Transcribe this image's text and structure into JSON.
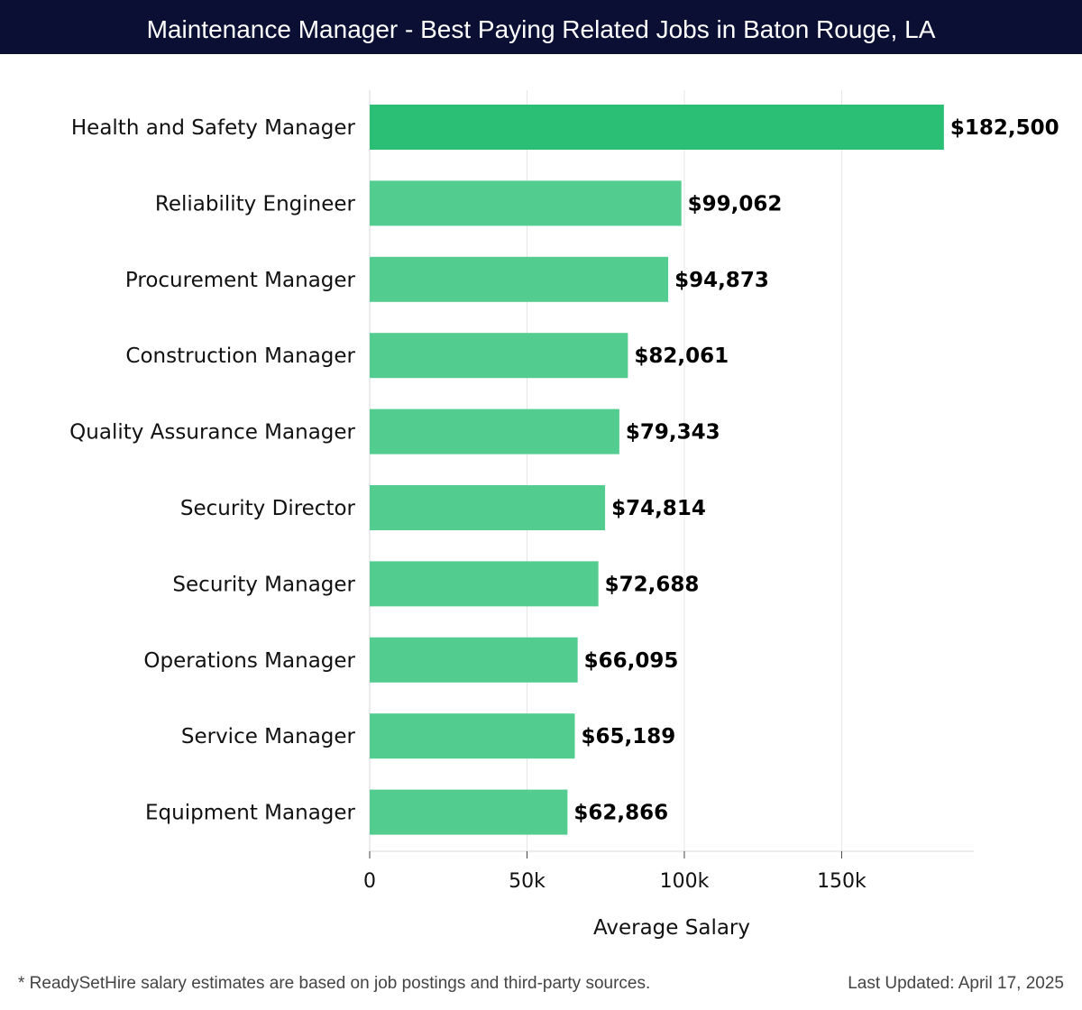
{
  "header": {
    "title": "Maintenance Manager - Best Paying Related Jobs in Baton Rouge, LA"
  },
  "footer": {
    "note": "* ReadySetHire salary estimates are based on job postings and third-party sources.",
    "updated": "Last Updated: April 17, 2025"
  },
  "colors": {
    "header_bg": "#0b0f33",
    "bar_top": "#2bbf75",
    "bar": "#52cc8f",
    "grid": "#e6e6e6"
  },
  "chart_data": {
    "type": "bar",
    "orientation": "horizontal",
    "title": "Maintenance Manager - Best Paying Related Jobs in Baton Rouge, LA",
    "xlabel": "Average Salary",
    "ylabel": "",
    "xlim": [
      0,
      192000
    ],
    "xticks": [
      0,
      50000,
      100000,
      150000
    ],
    "xtick_labels": [
      "0",
      "50k",
      "100k",
      "150k"
    ],
    "grid": true,
    "categories": [
      "Health and Safety Manager",
      "Reliability Engineer",
      "Procurement Manager",
      "Construction Manager",
      "Quality Assurance Manager",
      "Security Director",
      "Security Manager",
      "Operations Manager",
      "Service Manager",
      "Equipment Manager"
    ],
    "values": [
      182500,
      99062,
      94873,
      82061,
      79343,
      74814,
      72688,
      66095,
      65189,
      62866
    ],
    "value_labels": [
      "$182,500",
      "$99,062",
      "$94,873",
      "$82,061",
      "$79,343",
      "$74,814",
      "$72,688",
      "$66,095",
      "$65,189",
      "$62,866"
    ]
  }
}
